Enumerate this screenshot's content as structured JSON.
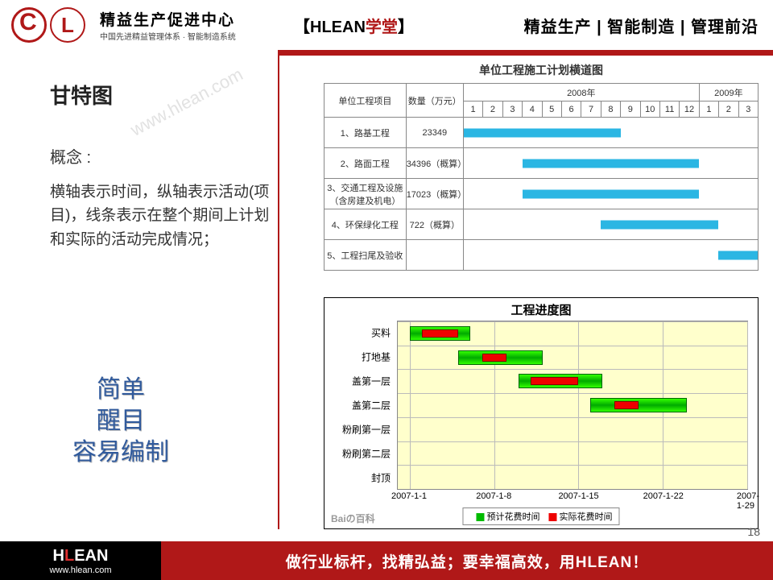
{
  "header": {
    "logo_main": "精益生产促进中心",
    "logo_sub": "中国先进精益管理体系 · 智能制造系统",
    "brand_before": "【",
    "brand_h": "HLEAN",
    "brand_red": "学堂",
    "brand_after": "】",
    "tagline": "精益生产 | 智能制造 | 管理前沿"
  },
  "title": "甘特图",
  "watermark": "www.hlean.com",
  "concept_label": "概念 :",
  "concept_body": "横轴表示时间，纵轴表示活动(项目)，线条表示在整个期间上计划和实际的活动完成情况；",
  "keywords": [
    "简单",
    "醒目",
    "容易编制"
  ],
  "gantt1": {
    "title": "单位工程施工计划横道图",
    "col_name": "单位工程项目",
    "col_qty": "数量（万元）",
    "year_a": "2008年",
    "year_b": "2009年",
    "months_a": [
      "1",
      "2",
      "3",
      "4",
      "5",
      "6",
      "7",
      "8",
      "9",
      "10",
      "11",
      "12"
    ],
    "months_b": [
      "1",
      "2",
      "3"
    ],
    "rows": [
      {
        "name": "1、路基工程",
        "qty": "23349",
        "start": 1,
        "end": 8
      },
      {
        "name": "2、路面工程",
        "qty": "34396（概算）",
        "start": 4,
        "end": 12
      },
      {
        "name": "3、交通工程及设施（含房建及机电）",
        "qty": "17023（概算）",
        "start": 4,
        "end": 12
      },
      {
        "name": "4、环保绿化工程",
        "qty": "722（概算）",
        "start": 8,
        "end": 13
      },
      {
        "name": "5、工程扫尾及验收",
        "qty": "",
        "start": 14,
        "end": 15
      }
    ],
    "bar_color": "#2bb6e3",
    "months_total": 15
  },
  "gantt2": {
    "title": "工程进度图",
    "tasks": [
      "买料",
      "打地基",
      "盖第一层",
      "盖第二层",
      "粉刷第一层",
      "粉刷第二层",
      "封顶"
    ],
    "x_ticks": [
      "2007-1-1",
      "2007-1-8",
      "2007-1-15",
      "2007-1-22",
      "2007-1-29"
    ],
    "x_min": 0,
    "x_max": 29,
    "plan_color": "#00cc00",
    "actual_color": "#e00000",
    "bg_color": "#ffffcc",
    "bars": [
      {
        "task": 0,
        "plan_start": 1,
        "plan_end": 6,
        "act_start": 2,
        "act_end": 5
      },
      {
        "task": 1,
        "plan_start": 5,
        "plan_end": 12,
        "act_start": 7,
        "act_end": 9
      },
      {
        "task": 2,
        "plan_start": 10,
        "plan_end": 17,
        "act_start": 11,
        "act_end": 15
      },
      {
        "task": 3,
        "plan_start": 16,
        "plan_end": 24,
        "act_start": 18,
        "act_end": 20
      }
    ],
    "legend_plan": "预计花费时间",
    "legend_actual": "实际花费时间",
    "baidu": "Baiの百科"
  },
  "footer": {
    "brand": "HLEAN",
    "url": "www.hlean.com",
    "slogan": "做行业标杆，找精弘益；要幸福高效，用HLEAN！",
    "page": "18"
  }
}
